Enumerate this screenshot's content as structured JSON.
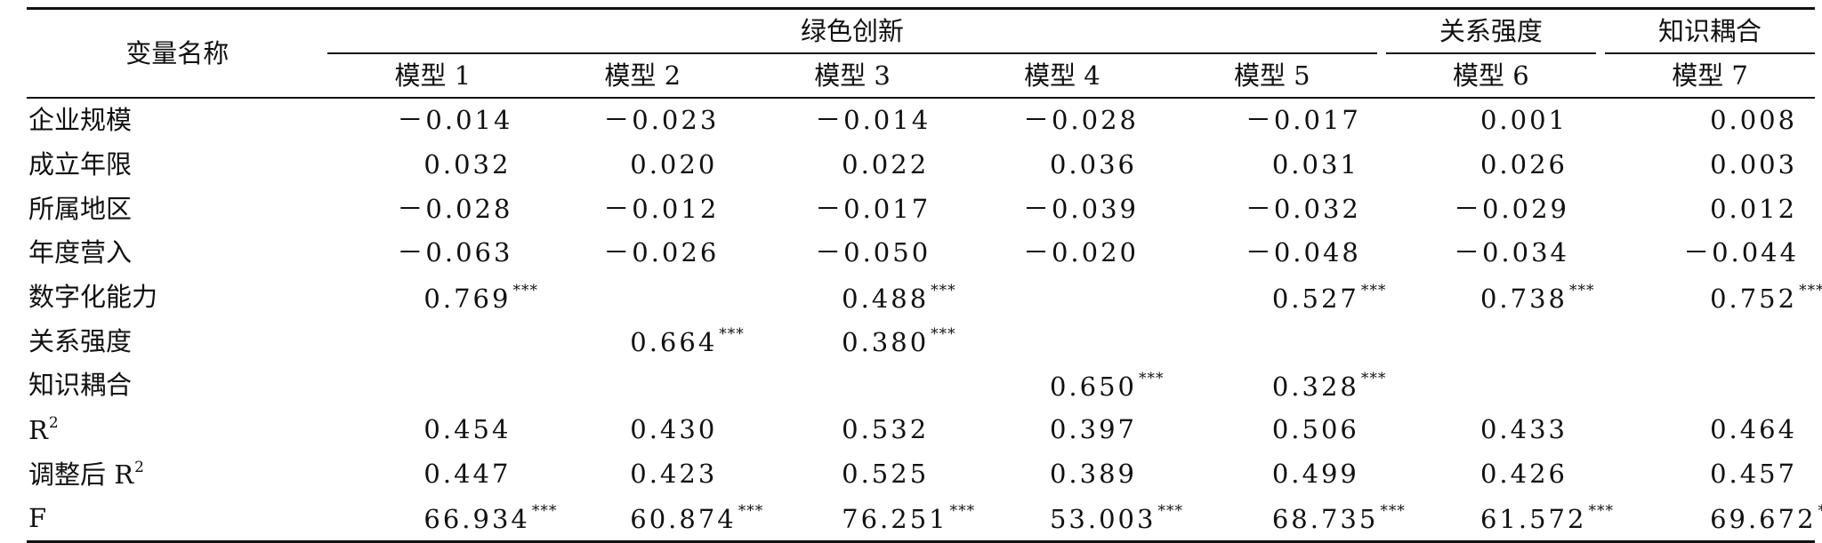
{
  "table": {
    "corner_label": "变量名称",
    "groups": {
      "green_innovation": "绿色创新",
      "relation_strength": "关系强度",
      "knowledge_coupling": "知识耦合"
    },
    "models": [
      "模型 1",
      "模型 2",
      "模型 3",
      "模型 4",
      "模型 5",
      "模型 6",
      "模型 7"
    ],
    "rows": [
      {
        "name": "企业规模",
        "values": [
          "－0.014",
          "－0.023",
          "－0.014",
          "－0.028",
          "－0.017",
          "0.001",
          "0.008"
        ],
        "stars": [
          "",
          "",
          "",
          "",
          "",
          "",
          ""
        ]
      },
      {
        "name": "成立年限",
        "values": [
          "0.032",
          "0.020",
          "0.022",
          "0.036",
          "0.031",
          "0.026",
          "0.003"
        ],
        "stars": [
          "",
          "",
          "",
          "",
          "",
          "",
          ""
        ]
      },
      {
        "name": "所属地区",
        "values": [
          "－0.028",
          "－0.012",
          "－0.017",
          "－0.039",
          "－0.032",
          "－0.029",
          "0.012"
        ],
        "stars": [
          "",
          "",
          "",
          "",
          "",
          "",
          ""
        ]
      },
      {
        "name": "年度营入",
        "values": [
          "－0.063",
          "－0.026",
          "－0.050",
          "－0.020",
          "－0.048",
          "－0.034",
          "－0.044"
        ],
        "stars": [
          "",
          "",
          "",
          "",
          "",
          "",
          ""
        ]
      },
      {
        "name": "数字化能力",
        "values": [
          "0.769",
          "",
          "0.488",
          "",
          "0.527",
          "0.738",
          "0.752"
        ],
        "stars": [
          "***",
          "",
          "***",
          "",
          "***",
          "***",
          "***"
        ]
      },
      {
        "name": "关系强度",
        "values": [
          "",
          "0.664",
          "0.380",
          "",
          "",
          "",
          ""
        ],
        "stars": [
          "",
          "***",
          "***",
          "",
          "",
          "",
          ""
        ]
      },
      {
        "name": "知识耦合",
        "values": [
          "",
          "",
          "",
          "0.650",
          "0.328",
          "",
          ""
        ],
        "stars": [
          "",
          "",
          "",
          "***",
          "***",
          "",
          ""
        ]
      },
      {
        "name": "R",
        "name_sup": "2",
        "values": [
          "0.454",
          "0.430",
          "0.532",
          "0.397",
          "0.506",
          "0.433",
          "0.464"
        ],
        "stars": [
          "",
          "",
          "",
          "",
          "",
          "",
          ""
        ]
      },
      {
        "name": "调整后 R",
        "name_sup": "2",
        "values": [
          "0.447",
          "0.423",
          "0.525",
          "0.389",
          "0.499",
          "0.426",
          "0.457"
        ],
        "stars": [
          "",
          "",
          "",
          "",
          "",
          "",
          ""
        ]
      },
      {
        "name": "F",
        "values": [
          "66.934",
          "60.874",
          "76.251",
          "53.003",
          "68.735",
          "61.572",
          "69.672"
        ],
        "stars": [
          "***",
          "***",
          "***",
          "***",
          "***",
          "***",
          "***"
        ]
      }
    ]
  }
}
